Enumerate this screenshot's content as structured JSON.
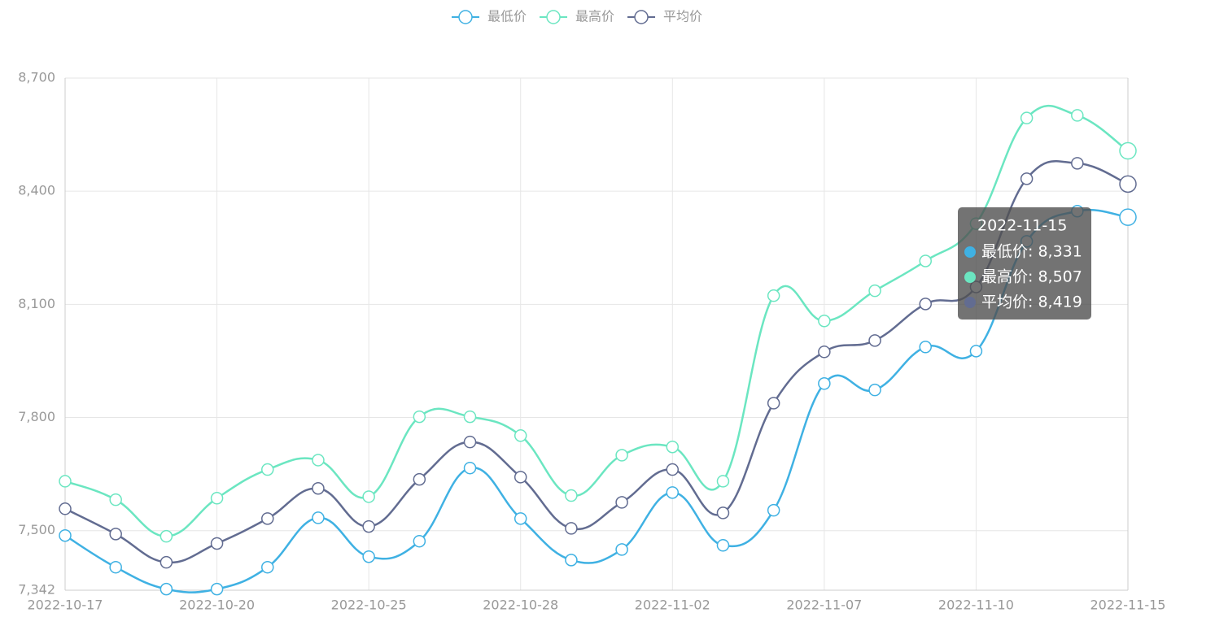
{
  "chart_data": {
    "type": "line",
    "categories": [
      "2022-10-17",
      null,
      null,
      "2022-10-20",
      null,
      null,
      "2022-10-25",
      null,
      null,
      "2022-10-28",
      null,
      null,
      "2022-11-02",
      null,
      null,
      "2022-11-07",
      null,
      null,
      "2022-11-10",
      null,
      null,
      "2022-11-15"
    ],
    "series": [
      {
        "name": "最低价",
        "color": "#3fb1e3",
        "values": [
          7487,
          7403,
          7345,
          7345,
          7403,
          7534,
          7431,
          7472,
          7666,
          7532,
          7422,
          7450,
          7601,
          7461,
          7554,
          7890,
          7873,
          7987,
          7976,
          8267,
          8347,
          8331
        ]
      },
      {
        "name": "最高价",
        "color": "#6be6c1",
        "values": [
          7631,
          7582,
          7485,
          7586,
          7662,
          7687,
          7590,
          7802,
          7802,
          7752,
          7593,
          7700,
          7722,
          7631,
          8123,
          8056,
          8136,
          8215,
          8314,
          8594,
          8601,
          8507
        ]
      },
      {
        "name": "平均价",
        "color": "#626c91",
        "values": [
          7558,
          7491,
          7416,
          7466,
          7532,
          7612,
          7511,
          7636,
          7735,
          7642,
          7506,
          7575,
          7662,
          7547,
          7838,
          7974,
          8004,
          8101,
          8146,
          8433,
          8474,
          8419
        ]
      }
    ],
    "ylim": [
      7342,
      8700
    ],
    "yticks": [
      {
        "value": 7342,
        "label": "7,342"
      },
      {
        "value": 7500,
        "label": "7,500"
      },
      {
        "value": 7800,
        "label": "7,800"
      },
      {
        "value": 8100,
        "label": "8,100"
      },
      {
        "value": 8400,
        "label": "8,400"
      },
      {
        "value": 8700,
        "label": "8,700"
      }
    ],
    "grid": true,
    "smooth": true,
    "legend": "top",
    "tooltip": {
      "title": "2022-11-15",
      "rows": [
        "最低价: 8,331",
        "最高价: 8,507",
        "平均价: 8,419"
      ]
    }
  }
}
